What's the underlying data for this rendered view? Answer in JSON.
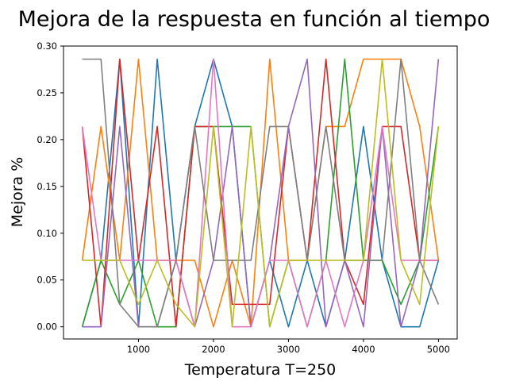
{
  "chart_data": {
    "type": "line",
    "title": "Mejora de la respuesta en función al tiempo",
    "xlabel": "Temperatura T=250",
    "ylabel": "Mejora %",
    "xlim": [
      0,
      5250
    ],
    "ylim": [
      -0.013,
      0.3
    ],
    "x": [
      250,
      500,
      750,
      1000,
      1250,
      1500,
      1750,
      2000,
      2250,
      2500,
      2750,
      3000,
      3250,
      3500,
      3750,
      4000,
      4250,
      4500,
      4750,
      5000
    ],
    "x_ticks": [
      1000,
      2000,
      3000,
      4000,
      5000
    ],
    "x_tick_labels": [
      "1000",
      "2000",
      "3000",
      "4000",
      "5000"
    ],
    "y_ticks": [
      0.0,
      0.05,
      0.1,
      0.15,
      0.2,
      0.25,
      0.3
    ],
    "y_tick_labels": [
      "0.00",
      "0.05",
      "0.10",
      "0.15",
      "0.20",
      "0.25",
      "0.30"
    ],
    "grid": false,
    "legend": "none",
    "series": [
      {
        "color": "#1f77b4",
        "values": [
          0.0,
          0.071,
          0.286,
          0.0,
          0.286,
          0.071,
          0.214,
          0.286,
          0.214,
          0.0,
          0.071,
          0.0,
          0.071,
          0.0,
          0.071,
          0.214,
          0.071,
          0.0,
          0.0,
          0.071
        ]
      },
      {
        "color": "#ff7f0e",
        "values": [
          0.071,
          0.214,
          0.071,
          0.286,
          0.071,
          0.071,
          0.071,
          0.0,
          0.071,
          0.0,
          0.286,
          0.071,
          0.071,
          0.214,
          0.214,
          0.286,
          0.286,
          0.286,
          0.214,
          0.071
        ]
      },
      {
        "color": "#2ca02c",
        "values": [
          0.0,
          0.071,
          0.024,
          0.071,
          0.0,
          0.0,
          0.214,
          0.214,
          0.214,
          0.214,
          0.0,
          0.071,
          0.0,
          0.071,
          0.286,
          0.071,
          0.071,
          0.024,
          0.071,
          0.214
        ]
      },
      {
        "color": "#d62728",
        "values": [
          0.214,
          0.0,
          0.286,
          0.071,
          0.214,
          0.0,
          0.214,
          0.214,
          0.024,
          0.024,
          0.024,
          0.214,
          0.071,
          0.286,
          0.071,
          0.024,
          0.214,
          0.214,
          0.071,
          0.071
        ]
      },
      {
        "color": "#9467bd",
        "values": [
          0.0,
          0.0,
          0.214,
          0.0,
          0.0,
          0.071,
          0.0,
          0.071,
          0.214,
          0.0,
          0.071,
          0.214,
          0.286,
          0.0,
          0.071,
          0.0,
          0.214,
          0.0,
          0.071,
          0.286
        ]
      },
      {
        "color": "#e377c2",
        "values": [
          0.214,
          0.071,
          0.071,
          0.071,
          0.071,
          0.071,
          0.0,
          0.286,
          0.0,
          0.0,
          0.071,
          0.071,
          0.0,
          0.071,
          0.0,
          0.071,
          0.214,
          0.071,
          0.071,
          0.071
        ]
      },
      {
        "color": "#7f7f7f",
        "values": [
          0.286,
          0.286,
          0.024,
          0.0,
          0.0,
          0.071,
          0.214,
          0.071,
          0.071,
          0.071,
          0.214,
          0.214,
          0.071,
          0.214,
          0.071,
          0.071,
          0.071,
          0.286,
          0.071,
          0.024
        ]
      },
      {
        "color": "#bcbd22",
        "values": [
          0.071,
          0.071,
          0.071,
          0.024,
          0.071,
          0.024,
          0.0,
          0.214,
          0.0,
          0.214,
          0.0,
          0.071,
          0.071,
          0.071,
          0.071,
          0.071,
          0.286,
          0.071,
          0.024,
          0.214
        ]
      }
    ]
  }
}
